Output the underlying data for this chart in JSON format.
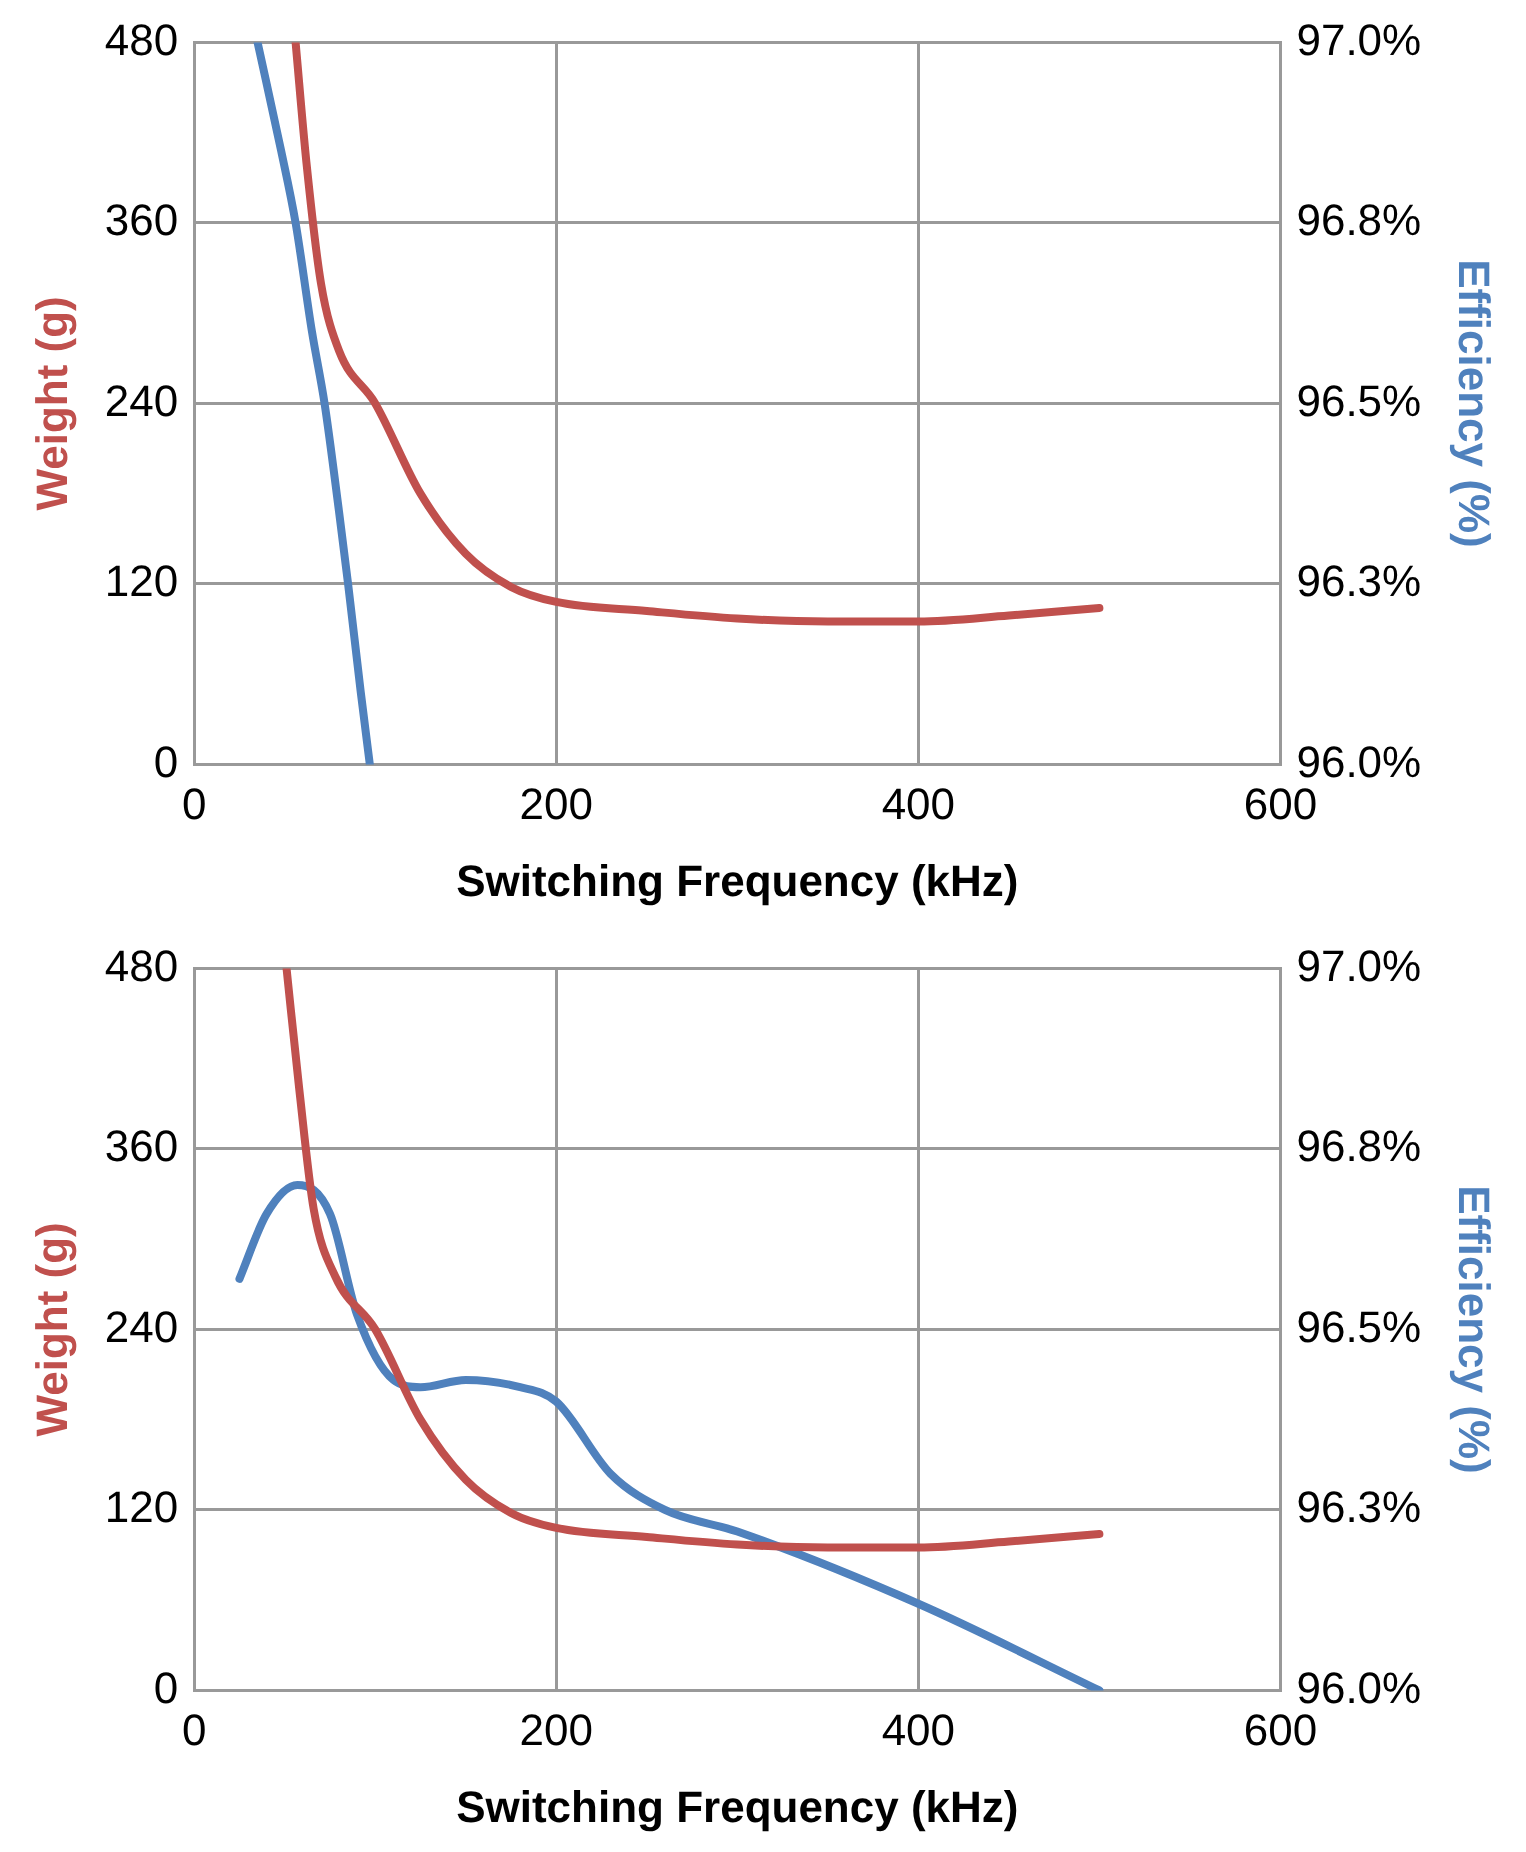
{
  "chart_data": [
    {
      "type": "line",
      "xlabel": "Switching Frequency (kHz)",
      "ylabel": "Weight (g)",
      "y2label": "Efficiency (%)",
      "xlim": [
        0,
        600
      ],
      "xticks": [
        0,
        200,
        400,
        600
      ],
      "ylim": [
        0,
        480
      ],
      "yticks": [
        0,
        120,
        240,
        360,
        480
      ],
      "y2lim": [
        96.0,
        97.0
      ],
      "y2ticks": [
        {
          "value": 96.0,
          "label": "96.0%"
        },
        {
          "value": 96.25,
          "label": "96.3%"
        },
        {
          "value": 96.5,
          "label": "96.5%"
        },
        {
          "value": 96.75,
          "label": "96.8%"
        },
        {
          "value": 97.0,
          "label": "97.0%"
        }
      ],
      "grid": true,
      "marker": "none",
      "line_style": "solid",
      "series": [
        {
          "color": "#c0504d",
          "x": [
            56,
            62,
            70,
            80,
            100,
            125,
            150,
            175,
            200,
            250,
            300,
            350,
            400,
            450,
            500
          ],
          "values": [
            480,
            400,
            320,
            275,
            240,
            180,
            140,
            118,
            108,
            102,
            97,
            95,
            95,
            99,
            104
          ]
        },
        {
          "color": "#4f81bd",
          "axis": "y2",
          "x": [
            35,
            48,
            56,
            65,
            72,
            80,
            85,
            92,
            97
          ],
          "values": [
            97.0,
            96.85,
            96.75,
            96.6,
            96.5,
            96.35,
            96.25,
            96.1,
            96.0
          ]
        }
      ]
    },
    {
      "type": "line",
      "xlabel": "Switching Frequency (kHz)",
      "ylabel": "Weight (g)",
      "y2label": "Efficiency (%)",
      "xlim": [
        0,
        600
      ],
      "xticks": [
        0,
        200,
        400,
        600
      ],
      "ylim": [
        0,
        480
      ],
      "yticks": [
        0,
        120,
        240,
        360,
        480
      ],
      "y2lim": [
        96.0,
        97.0
      ],
      "y2ticks": [
        {
          "value": 96.0,
          "label": "96.0%"
        },
        {
          "value": 96.25,
          "label": "96.3%"
        },
        {
          "value": 96.5,
          "label": "96.5%"
        },
        {
          "value": 96.75,
          "label": "96.8%"
        },
        {
          "value": 97.0,
          "label": "97.0%"
        }
      ],
      "grid": true,
      "marker": "none",
      "line_style": "solid",
      "series": [
        {
          "color": "#c0504d",
          "x": [
            51,
            58,
            66,
            78,
            100,
            125,
            150,
            175,
            200,
            250,
            300,
            350,
            400,
            450,
            500
          ],
          "values": [
            480,
            400,
            320,
            275,
            240,
            180,
            140,
            118,
            108,
            102,
            97,
            95,
            95,
            99,
            104
          ]
        },
        {
          "color": "#4f81bd",
          "axis": "y2",
          "x": [
            25,
            40,
            57,
            75,
            90,
            110,
            125,
            150,
            180,
            200,
            230,
            260,
            300,
            400,
            500
          ],
          "values": [
            96.57,
            96.66,
            96.7,
            96.66,
            96.52,
            96.43,
            96.42,
            96.43,
            96.42,
            96.4,
            96.3,
            96.25,
            96.22,
            96.12,
            96.0
          ]
        }
      ]
    }
  ]
}
